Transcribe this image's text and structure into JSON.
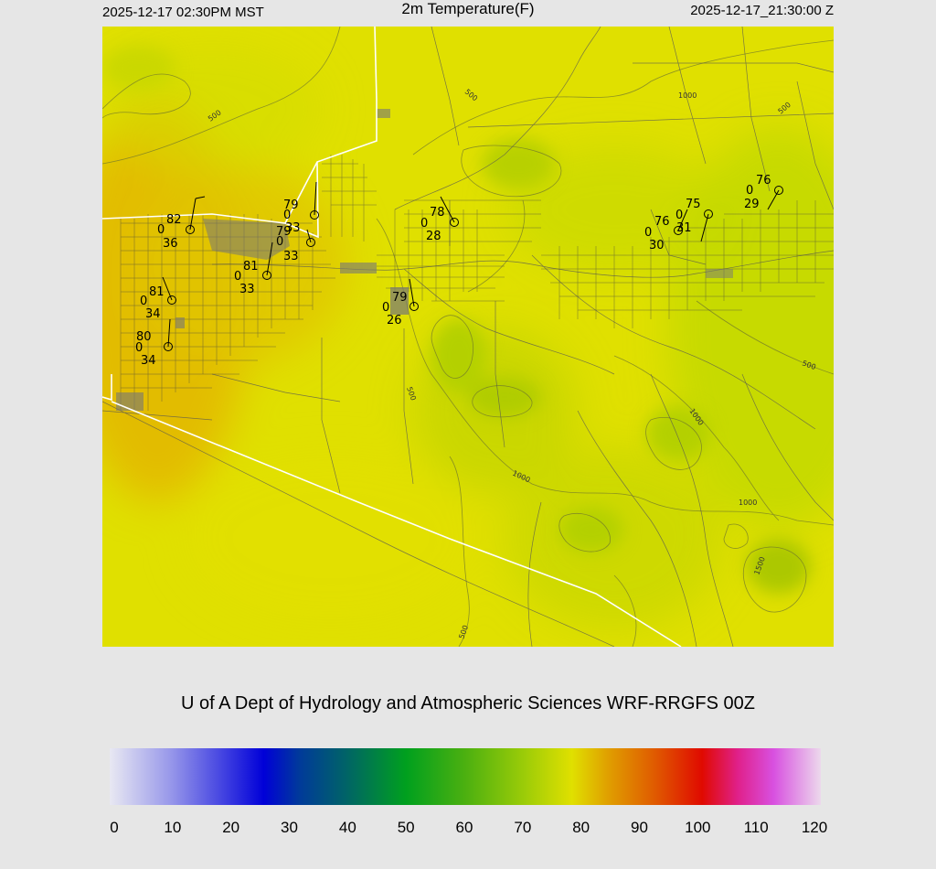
{
  "header": {
    "local_time": "2025-12-17 02:30PM MST",
    "title": "2m Temperature(F)",
    "utc_time": "2025-12-17_21:30:00 Z"
  },
  "credit": "U of A Dept of Hydrology and Atmospheric Sciences WRF-RRGFS 00Z",
  "colorbar": {
    "min": 0,
    "max": 120,
    "ticks": [
      "0",
      "10",
      "20",
      "30",
      "40",
      "50",
      "60",
      "70",
      "80",
      "90",
      "100",
      "110",
      "120"
    ],
    "stops": [
      {
        "value": 0,
        "color": "#e8e8f2"
      },
      {
        "value": 10,
        "color": "#9a9aea"
      },
      {
        "value": 20,
        "color": "#3a3ae0"
      },
      {
        "value": 26,
        "color": "#0000d8"
      },
      {
        "value": 32,
        "color": "#003a9a"
      },
      {
        "value": 40,
        "color": "#006466"
      },
      {
        "value": 50,
        "color": "#00a01e"
      },
      {
        "value": 60,
        "color": "#4cb010"
      },
      {
        "value": 70,
        "color": "#9ccc08"
      },
      {
        "value": 78,
        "color": "#e0e000"
      },
      {
        "value": 84,
        "color": "#e0a000"
      },
      {
        "value": 92,
        "color": "#e05a00"
      },
      {
        "value": 100,
        "color": "#e00a00"
      },
      {
        "value": 106,
        "color": "#e0208a"
      },
      {
        "value": 112,
        "color": "#d850e0"
      },
      {
        "value": 120,
        "color": "#ecd8ec"
      }
    ]
  },
  "contour_labels": [
    "500",
    "500",
    "1000",
    "500",
    "1000",
    "500",
    "1000",
    "1000",
    "1000",
    "1500",
    "500",
    "500"
  ],
  "stations": [
    {
      "temp": "82",
      "dew": "36",
      "wind": "0"
    },
    {
      "temp": "79",
      "dew": "33",
      "wind": "0"
    },
    {
      "temp": "79",
      "dew": "33",
      "wind": "0"
    },
    {
      "temp": "81",
      "dew": "33",
      "wind": "0"
    },
    {
      "temp": "81",
      "dew": "34",
      "wind": "0"
    },
    {
      "temp": "80",
      "dew": "34",
      "wind": "0"
    },
    {
      "temp": "79",
      "dew": "26",
      "wind": "0"
    },
    {
      "temp": "78",
      "dew": "28",
      "wind": "0"
    },
    {
      "temp": "76",
      "dew": "30",
      "wind": "0"
    },
    {
      "temp": "75",
      "dew": "31",
      "wind": "0"
    },
    {
      "temp": "76",
      "dew": "29",
      "wind": "0"
    }
  ]
}
